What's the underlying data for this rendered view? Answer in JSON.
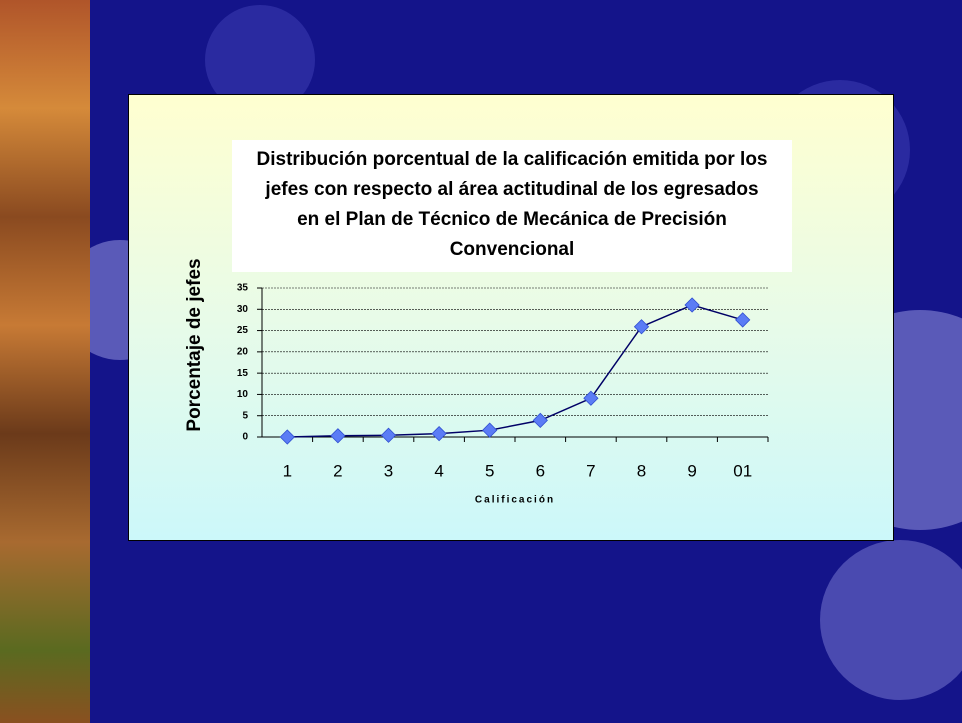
{
  "chart_data": {
    "type": "line",
    "title": "Distribución porcentual de la calificación emitida por los jefes con respecto al área actitudinal de los egresados  en el Plan de Técnico de Mecánica de Precisión Convencional",
    "x_label": "Calificación",
    "y_label": "Porcentaje de jefes",
    "categories": [
      "1",
      "2",
      "3",
      "4",
      "5",
      "6",
      "7",
      "8",
      "9",
      "01"
    ],
    "values": [
      0,
      0.3,
      0.4,
      0.8,
      1.6,
      3.9,
      9.1,
      25.9,
      31,
      27.5
    ],
    "color": "#000066",
    "marker_color": "#5b7cf5",
    "ylim": [
      0,
      35
    ],
    "yticks": [
      0,
      5,
      10,
      15,
      20,
      25,
      30,
      35
    ],
    "grid": true
  }
}
